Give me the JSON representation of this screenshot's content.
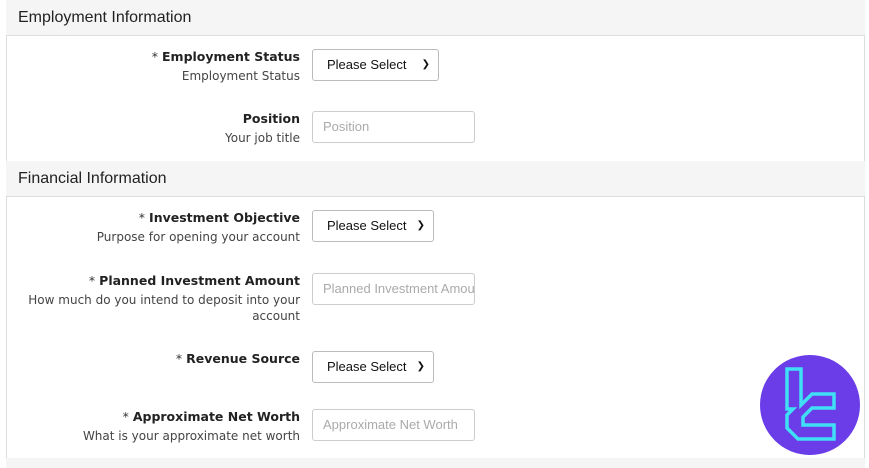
{
  "sections": [
    {
      "title": "Employment Information"
    },
    {
      "title": "Financial Information"
    }
  ],
  "fields": {
    "employment_status": {
      "required": "*",
      "label": "Employment Status",
      "help": "Employment Status",
      "value": "Please Select"
    },
    "position": {
      "label": "Position",
      "help": "Your job title",
      "placeholder": "Position"
    },
    "investment_objective": {
      "required": "*",
      "label": "Investment Objective",
      "help": "Purpose for opening your account",
      "value": "Please Select"
    },
    "planned_amount": {
      "required": "*",
      "label": "Planned Investment Amount",
      "help": "How much do you intend to deposit into your account",
      "placeholder": "Planned Investment Amount"
    },
    "revenue_source": {
      "required": "*",
      "label": "Revenue Source",
      "value": "Please Select"
    },
    "net_worth": {
      "required": "*",
      "label": "Approximate Net Worth",
      "help": "What is your approximate net worth",
      "placeholder": "Approximate Net Worth"
    }
  },
  "colors": {
    "logo_bg": "#6a3de8",
    "logo_stroke": "#3fe0f5"
  }
}
